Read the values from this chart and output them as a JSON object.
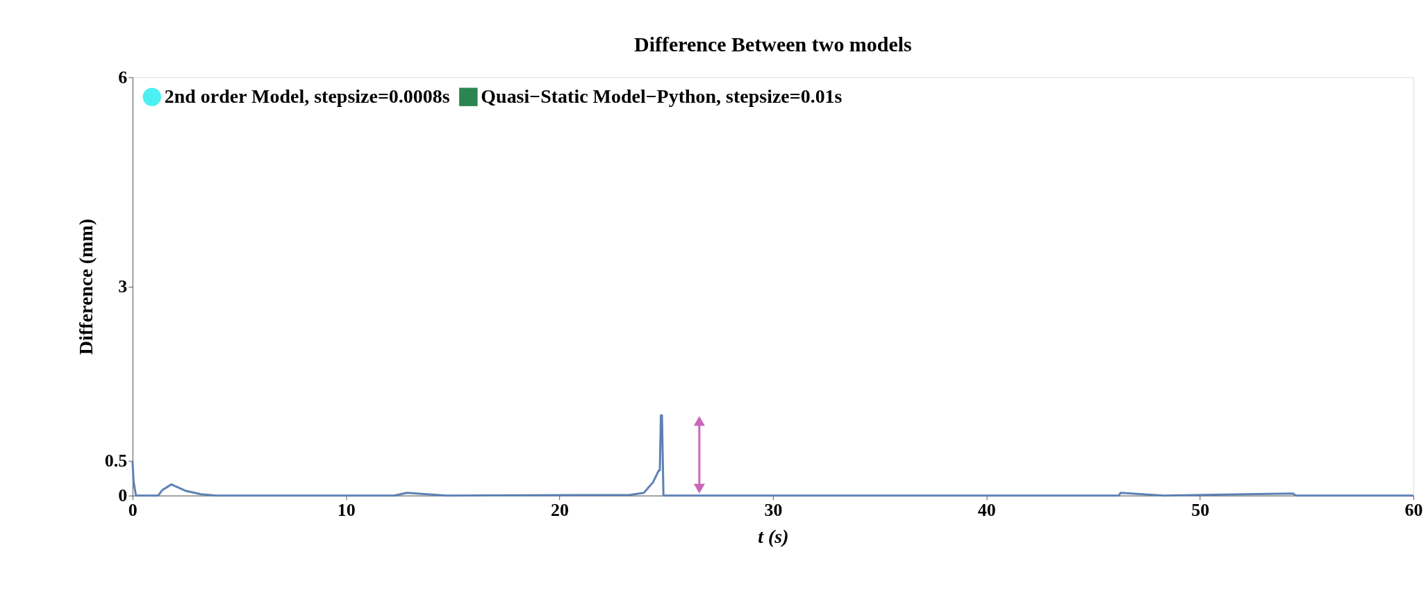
{
  "chart_data": {
    "type": "line",
    "title": "Difference Between two models",
    "xlabel": "t (s)",
    "ylabel": "Difference (mm)",
    "xlim": [
      0,
      60
    ],
    "ylim": [
      0,
      6
    ],
    "xticks": [
      0,
      10,
      20,
      30,
      40,
      50,
      60
    ],
    "yticks": [
      0,
      0.5,
      3,
      6
    ],
    "grid": false,
    "legend": "top left",
    "line_style": "solid",
    "series": [
      {
        "color": "#5e81b5",
        "x": [
          0,
          0.05,
          0.16,
          1.2,
          1.4,
          1.82,
          2.47,
          3.2,
          3.9,
          12.25,
          12.85,
          14.7,
          23.3,
          23.95,
          24.38,
          24.65,
          24.7,
          24.75,
          24.8,
          24.87,
          46.2,
          46.28,
          48.3,
          54.35,
          54.5,
          60
        ],
        "values": [
          0.49,
          0.2,
          0,
          0,
          0.08,
          0.16,
          0.07,
          0.02,
          0,
          0,
          0.04,
          0,
          0.01,
          0.04,
          0.19,
          0.36,
          0.36,
          1.15,
          1.15,
          0,
          0,
          0.04,
          0,
          0.03,
          0,
          0
        ]
      },
      {
        "type": "scatter",
        "name": "2nd order Model, stepsize=0.0008s",
        "color": "#4cf0f0",
        "marker": "circle"
      },
      {
        "type": "scatter",
        "name": "Quasi−Static Model−Python, stepsize=0.01s",
        "color": "#2a8550",
        "marker": "square"
      }
    ]
  }
}
